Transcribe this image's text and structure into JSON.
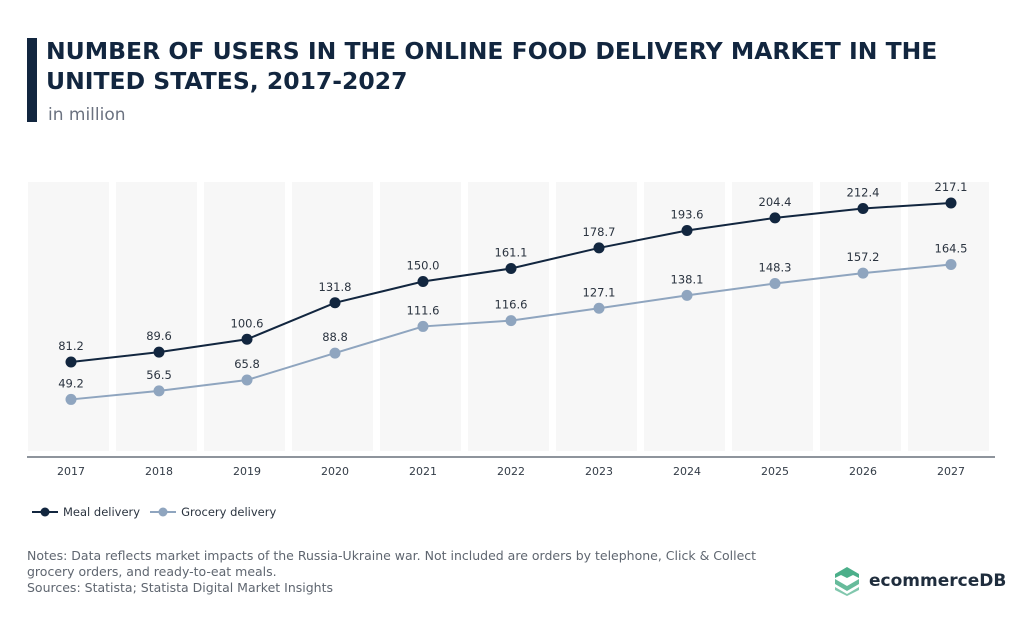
{
  "header": {
    "title": "NUMBER OF USERS IN THE ONLINE FOOD DELIVERY MARKET IN THE UNITED STATES, 2017-2027",
    "subtitle": "in million"
  },
  "chart_data": {
    "type": "line",
    "title": "NUMBER OF USERS IN THE ONLINE FOOD DELIVERY MARKET IN THE UNITED STATES, 2017-2027",
    "subtitle": "in million",
    "xlabel": "",
    "ylabel": "",
    "categories": [
      "2017",
      "2018",
      "2019",
      "2020",
      "2021",
      "2022",
      "2023",
      "2024",
      "2025",
      "2026",
      "2027"
    ],
    "ylim": [
      0,
      230
    ],
    "grid": false,
    "legend_position": "bottom-left",
    "series": [
      {
        "name": "Meal delivery",
        "color": "#12263f",
        "values": [
          81.2,
          89.6,
          100.6,
          131.8,
          150.0,
          161.1,
          178.7,
          193.6,
          204.4,
          212.4,
          217.1
        ],
        "labels": [
          "81.2",
          "89.6",
          "100.6",
          "131.8",
          "150.0",
          "161.1",
          "178.7",
          "193.6",
          "204.4",
          "212.4",
          "217.1"
        ]
      },
      {
        "name": "Grocery delivery",
        "color": "#8fa5bf",
        "values": [
          49.2,
          56.5,
          65.8,
          88.8,
          111.6,
          116.6,
          127.1,
          138.1,
          148.3,
          157.2,
          164.5
        ],
        "labels": [
          "49.2",
          "56.5",
          "65.8",
          "88.8",
          "111.6",
          "116.6",
          "127.1",
          "138.1",
          "148.3",
          "157.2",
          "164.5"
        ]
      }
    ],
    "band_color": "#f7f7f7",
    "axis_color": "#4a5360"
  },
  "legend": {
    "items": [
      {
        "label": "Meal delivery",
        "color": "#12263f"
      },
      {
        "label": "Grocery delivery",
        "color": "#8fa5bf"
      }
    ]
  },
  "footer": {
    "notes": "Notes: Data reflects market impacts of the Russia-Ukraine war. Not included are orders by telephone, Click & Collect grocery orders, and ready-to-eat meals.",
    "sources": "Sources: Statista; Statista Digital Market Insights"
  },
  "brand": {
    "name": "ecommerceDB",
    "icon": "stacked-layers-logo-icon",
    "color": "#4caf8a"
  }
}
